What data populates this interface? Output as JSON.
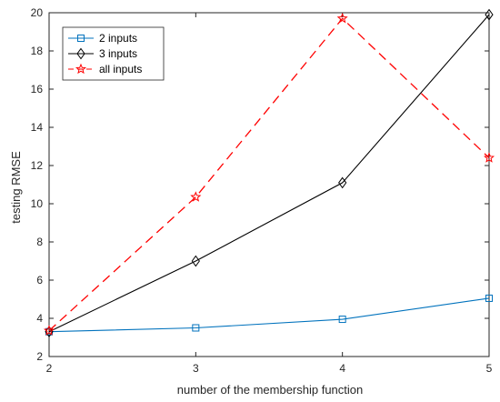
{
  "chart_data": {
    "type": "line",
    "xlabel": "number of the membership function",
    "ylabel": "testing RMSE",
    "xlim": [
      2,
      5
    ],
    "ylim": [
      2,
      20
    ],
    "xticks": [
      "2",
      "3",
      "4",
      "5"
    ],
    "yticks": [
      "2",
      "4",
      "6",
      "8",
      "10",
      "12",
      "14",
      "16",
      "18",
      "20"
    ],
    "grid": false,
    "legend_position": "top-left",
    "x": [
      2,
      3,
      4,
      5
    ],
    "series": [
      {
        "name": "2 inputs",
        "values": [
          3.3,
          3.5,
          3.95,
          5.05
        ],
        "color": "#0072bd",
        "line": "solid",
        "marker": "square"
      },
      {
        "name": "3 inputs",
        "values": [
          3.3,
          7.0,
          11.1,
          19.9
        ],
        "color": "#000000",
        "line": "solid",
        "marker": "diamond"
      },
      {
        "name": "all inputs",
        "values": [
          3.35,
          10.35,
          19.7,
          12.4
        ],
        "color": "#ff0000",
        "line": "dashed",
        "marker": "star"
      }
    ]
  }
}
